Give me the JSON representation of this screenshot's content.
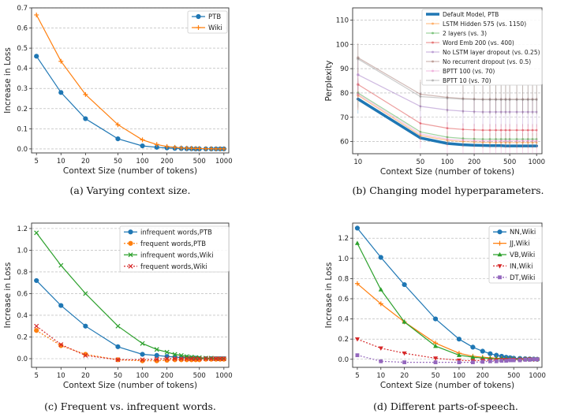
{
  "chart_data": [
    {
      "type": "line",
      "xscale": "log",
      "x": [
        5,
        10,
        20,
        50,
        100,
        150,
        200,
        250,
        300,
        350,
        400,
        450,
        500,
        600,
        700,
        800,
        900,
        1000
      ],
      "xticks": [
        "5",
        "10",
        "20",
        "50",
        "100",
        "200",
        "500",
        "1000"
      ],
      "ylim": [
        -0.02,
        0.7
      ],
      "yticks": [
        "0.0",
        "0.1",
        "0.2",
        "0.3",
        "0.4",
        "0.5",
        "0.6",
        "0.7"
      ],
      "xlabel": "Context Size (number of tokens)",
      "ylabel": "Increase in Loss",
      "grid": "y",
      "legend": "top-right",
      "caption": "(a) Varying context size.",
      "series": [
        {
          "name": "PTB",
          "color": "#1f77b4",
          "marker": "dot",
          "dash": false,
          "values": [
            0.46,
            0.28,
            0.15,
            0.05,
            0.015,
            0.008,
            0.005,
            0.003,
            0.002,
            0.001,
            0.001,
            0.0,
            0.0,
            0.0,
            0.0,
            0.0,
            0.0,
            0.0
          ]
        },
        {
          "name": "Wiki",
          "color": "#ff7f0e",
          "marker": "plus",
          "dash": false,
          "values": [
            0.665,
            0.435,
            0.27,
            0.12,
            0.045,
            0.022,
            0.012,
            0.008,
            0.005,
            0.004,
            0.003,
            0.002,
            0.002,
            0.001,
            0.001,
            0.0,
            0.0,
            0.0
          ]
        }
      ]
    },
    {
      "type": "line",
      "xscale": "log",
      "x": [
        10,
        50,
        100,
        150,
        200,
        250,
        300,
        350,
        400,
        450,
        500,
        600,
        700,
        800,
        900,
        1000
      ],
      "xticks": [
        "10",
        "50",
        "100",
        "200",
        "500",
        "1000"
      ],
      "ylim": [
        55,
        115
      ],
      "yticks": [
        "60",
        "70",
        "80",
        "90",
        "100",
        "110"
      ],
      "xlabel": "Context Size (number of tokens)",
      "ylabel": "Perplexity",
      "grid": "y",
      "legend": "top-right",
      "caption": "(b) Changing model hyperparameters.",
      "series": [
        {
          "name": "Default Model, PTB",
          "color": "#1f77b4",
          "width": 3.5,
          "opacity": 1,
          "values": [
            77.5,
            61.5,
            59.2,
            58.7,
            58.5,
            58.4,
            58.3,
            58.3,
            58.3,
            58.2,
            58.2,
            58.2,
            58.2,
            58.2,
            58.2,
            58.2
          ]
        },
        {
          "name": "LSTM Hidden 575 (vs. 1150)",
          "color": "#ff7f0e",
          "width": 1.2,
          "opacity": 0.45,
          "values": [
            79,
            62.5,
            60.5,
            60.0,
            59.8,
            59.7,
            59.6,
            59.6,
            59.6,
            59.6,
            59.6,
            59.6,
            59.6,
            59.6,
            59.6,
            59.6
          ]
        },
        {
          "name": "2 layers (vs. 3)",
          "color": "#2ca02c",
          "width": 1.2,
          "opacity": 0.45,
          "values": [
            80,
            64,
            61.8,
            61.3,
            61.1,
            61.0,
            61.0,
            61.0,
            61.0,
            61.0,
            61.0,
            61.0,
            61.0,
            61.0,
            61.0,
            61.0
          ]
        },
        {
          "name": "Word Emb 200 (vs. 400)",
          "color": "#d62728",
          "width": 1.2,
          "opacity": 0.45,
          "values": [
            83.5,
            67.5,
            65.5,
            65.0,
            64.8,
            64.7,
            64.7,
            64.7,
            64.7,
            64.7,
            64.7,
            64.7,
            64.7,
            64.7,
            64.7,
            64.7
          ]
        },
        {
          "name": "No LSTM layer dropout (vs. 0.25)",
          "color": "#9467bd",
          "width": 1.2,
          "opacity": 0.45,
          "values": [
            87.5,
            74.5,
            73,
            72.5,
            72.3,
            72.2,
            72.2,
            72.2,
            72.2,
            72.2,
            72.2,
            72.2,
            72.2,
            72.2,
            72.2,
            72.2
          ]
        },
        {
          "name": "No recurrent dropout (vs. 0.5)",
          "color": "#8c564b",
          "width": 1.2,
          "opacity": 0.4,
          "values": [
            94.5,
            79.5,
            78.2,
            77.7,
            77.5,
            77.4,
            77.4,
            77.4,
            77.4,
            77.4,
            77.4,
            77.4,
            77.4,
            77.4,
            77.4,
            77.4
          ]
        },
        {
          "name": "BPTT 100 (vs. 70)",
          "color": "#e377c2",
          "width": 1.2,
          "opacity": 0.4,
          "values": [
            79.5,
            63.2,
            61.0,
            60.6,
            60.4,
            60.3,
            60.3,
            60.3,
            60.3,
            60.3,
            60.3,
            60.3,
            60.3,
            60.3,
            60.3,
            60.3
          ]
        },
        {
          "name": "BPTT 10 (vs. 70)",
          "color": "#7f7f7f",
          "width": 1.2,
          "opacity": 0.4,
          "values": [
            94,
            78.5,
            77.8,
            77.4,
            77.3,
            77.2,
            77.2,
            77.2,
            77.2,
            77.2,
            77.2,
            77.2,
            77.2,
            77.2,
            77.2,
            77.2
          ]
        }
      ]
    },
    {
      "type": "line",
      "xscale": "log",
      "x": [
        5,
        10,
        20,
        50,
        100,
        150,
        200,
        250,
        300,
        350,
        400,
        450,
        500,
        600,
        700,
        800,
        900,
        1000
      ],
      "xticks": [
        "5",
        "10",
        "20",
        "50",
        "100",
        "200",
        "500",
        "1000"
      ],
      "ylim": [
        -0.08,
        1.25
      ],
      "yticks": [
        "0.0",
        "0.2",
        "0.4",
        "0.6",
        "0.8",
        "1.0",
        "1.2"
      ],
      "xlabel": "Context Size (number of tokens)",
      "ylabel": "Increase in Loss",
      "grid": "y",
      "legend": "top-right",
      "caption": "(c) Frequent vs. infrequent words.",
      "series": [
        {
          "name": "infrequent words,PTB",
          "color": "#1f77b4",
          "marker": "dot",
          "dash": false,
          "values": [
            0.72,
            0.49,
            0.3,
            0.11,
            0.04,
            0.03,
            0.02,
            0.015,
            0.01,
            0.01,
            0.005,
            0.005,
            0.0,
            0.0,
            0.0,
            0.0,
            0.0,
            0.0
          ]
        },
        {
          "name": "frequent words,PTB",
          "color": "#ff7f0e",
          "marker": "dot",
          "dash": true,
          "values": [
            0.26,
            0.12,
            0.04,
            -0.01,
            -0.02,
            -0.02,
            -0.015,
            -0.01,
            -0.01,
            -0.01,
            -0.01,
            -0.01,
            -0.01,
            -0.005,
            -0.005,
            -0.005,
            -0.005,
            -0.005
          ]
        },
        {
          "name": "infrequent words,Wiki",
          "color": "#2ca02c",
          "marker": "x",
          "dash": false,
          "values": [
            1.16,
            0.86,
            0.6,
            0.3,
            0.14,
            0.085,
            0.06,
            0.04,
            0.03,
            0.02,
            0.015,
            0.01,
            0.01,
            0.005,
            0.005,
            0.0,
            0.0,
            0.0
          ]
        },
        {
          "name": "frequent words,Wiki",
          "color": "#d62728",
          "marker": "x",
          "dash": true,
          "values": [
            0.3,
            0.13,
            0.03,
            -0.01,
            -0.01,
            -0.005,
            0.0,
            0.0,
            0.0,
            0.0,
            0.0,
            0.0,
            0.0,
            0.0,
            0.0,
            0.0,
            0.0,
            0.0
          ]
        }
      ]
    },
    {
      "type": "line",
      "xscale": "log",
      "x": [
        5,
        10,
        20,
        50,
        100,
        150,
        200,
        250,
        300,
        350,
        400,
        450,
        500,
        600,
        700,
        800,
        900,
        1000
      ],
      "xticks": [
        "5",
        "10",
        "20",
        "50",
        "100",
        "200",
        "500",
        "1000"
      ],
      "ylim": [
        -0.08,
        1.35
      ],
      "yticks": [
        "0.0",
        "0.2",
        "0.4",
        "0.6",
        "0.8",
        "1.0",
        "1.2"
      ],
      "xlabel": "Context Size (number of tokens)",
      "ylabel": "Increase in Loss",
      "grid": "y",
      "legend": "top-right",
      "caption": "(d) Different parts-of-speech.",
      "series": [
        {
          "name": "NN,Wiki",
          "color": "#1f77b4",
          "marker": "dot",
          "dash": false,
          "values": [
            1.3,
            1.01,
            0.74,
            0.4,
            0.2,
            0.12,
            0.08,
            0.055,
            0.04,
            0.03,
            0.02,
            0.015,
            0.01,
            0.008,
            0.005,
            0.003,
            0.002,
            0.0
          ]
        },
        {
          "name": "JJ,Wiki",
          "color": "#ff7f0e",
          "marker": "plus",
          "dash": false,
          "values": [
            0.75,
            0.55,
            0.37,
            0.16,
            0.06,
            0.03,
            0.02,
            0.015,
            0.01,
            0.008,
            0.005,
            0.004,
            0.003,
            0.002,
            0.001,
            0.0,
            0.0,
            0.0
          ]
        },
        {
          "name": "VB,Wiki",
          "color": "#2ca02c",
          "marker": "tri",
          "dash": false,
          "values": [
            1.15,
            0.69,
            0.37,
            0.13,
            0.04,
            0.02,
            0.012,
            0.008,
            0.005,
            0.004,
            0.003,
            0.002,
            0.001,
            0.0,
            0.0,
            0.0,
            0.0,
            0.0
          ]
        },
        {
          "name": "IN,Wiki",
          "color": "#d62728",
          "marker": "tridown",
          "dash": true,
          "values": [
            0.2,
            0.11,
            0.06,
            0.01,
            -0.01,
            -0.015,
            -0.01,
            -0.01,
            -0.008,
            -0.005,
            -0.005,
            -0.004,
            -0.003,
            -0.002,
            -0.001,
            0.0,
            0.0,
            0.0
          ]
        },
        {
          "name": "DT,Wiki",
          "color": "#9467bd",
          "marker": "square",
          "dash": true,
          "values": [
            0.04,
            -0.02,
            -0.03,
            -0.03,
            -0.03,
            -0.03,
            -0.025,
            -0.02,
            -0.02,
            -0.015,
            -0.015,
            -0.01,
            -0.01,
            -0.01,
            -0.005,
            -0.005,
            0.0,
            0.0
          ]
        }
      ]
    }
  ]
}
